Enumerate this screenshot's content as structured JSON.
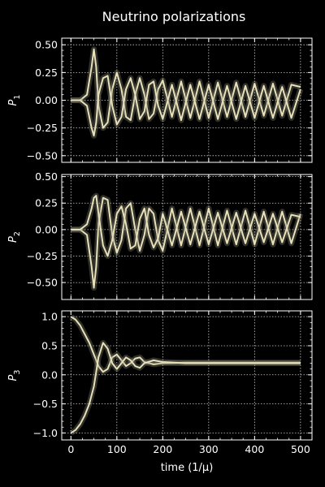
{
  "chart_data": {
    "title": "Neutrino polarizations",
    "type": "line",
    "xlabel": "time (1/μ)",
    "xlim": [
      -20,
      525
    ],
    "xticks": [
      0,
      100,
      200,
      300,
      400,
      500
    ],
    "grid": true,
    "background": "#000000",
    "line_color": "#e8e0b8",
    "ensemble_color": "#8a8a78",
    "panels": [
      {
        "ylabel": "P1",
        "ylim": [
          -0.56,
          0.56
        ],
        "yticks": [
          -0.5,
          -0.25,
          0.0,
          0.25,
          0.5
        ],
        "ytick_labels": [
          "−0.50",
          "−0.25",
          "0.00",
          "0.25",
          "0.50"
        ],
        "series": [
          {
            "x": [
              0,
              20,
              35,
              45,
              50,
              55,
              60,
              70,
              80,
              90,
              100,
              110,
              120,
              130,
              140,
              150,
              160,
              170,
              180,
              190,
              200,
              220,
              240,
              260,
              280,
              300,
              320,
              340,
              360,
              380,
              400,
              420,
              440,
              460,
              480,
              500
            ],
            "y": [
              0,
              0,
              0.05,
              0.3,
              0.46,
              0.3,
              -0.05,
              -0.25,
              -0.2,
              0.1,
              0.25,
              0.1,
              -0.15,
              -0.18,
              0.05,
              0.2,
              0.05,
              -0.17,
              -0.12,
              0.1,
              0.18,
              -0.15,
              0.17,
              -0.16,
              0.17,
              -0.16,
              0.16,
              -0.15,
              0.16,
              -0.15,
              0.15,
              -0.14,
              0.15,
              -0.14,
              0.14,
              0.12
            ]
          },
          {
            "x": [
              0,
              20,
              35,
              45,
              50,
              55,
              60,
              70,
              80,
              90,
              100,
              110,
              120,
              130,
              140,
              150,
              160,
              170,
              180,
              190,
              200,
              220,
              240,
              260,
              280,
              300,
              320,
              340,
              360,
              380,
              400,
              420,
              440,
              460,
              480,
              500
            ],
            "y": [
              0,
              0,
              -0.05,
              -0.25,
              -0.32,
              -0.2,
              0.05,
              0.2,
              0.22,
              -0.05,
              -0.22,
              -0.15,
              0.1,
              0.2,
              0.05,
              -0.17,
              -0.1,
              0.14,
              0.17,
              -0.05,
              -0.17,
              0.14,
              -0.18,
              0.14,
              -0.17,
              0.14,
              -0.17,
              0.13,
              -0.17,
              0.13,
              -0.16,
              0.13,
              -0.16,
              0.12,
              -0.16,
              0.1
            ]
          }
        ]
      },
      {
        "ylabel": "P2",
        "ylim": [
          -0.66,
          0.52
        ],
        "yticks": [
          -0.5,
          -0.25,
          0.0,
          0.25,
          0.5
        ],
        "ytick_labels": [
          "−0.50",
          "−0.25",
          "0.00",
          "0.25",
          "0.50"
        ],
        "series": [
          {
            "x": [
              0,
              20,
              35,
              45,
              50,
              55,
              60,
              70,
              80,
              90,
              100,
              110,
              120,
              130,
              140,
              150,
              160,
              170,
              180,
              190,
              200,
              220,
              240,
              260,
              280,
              300,
              320,
              340,
              360,
              380,
              400,
              420,
              440,
              460,
              480,
              500
            ],
            "y": [
              0,
              0,
              -0.05,
              -0.35,
              -0.55,
              -0.35,
              0.05,
              0.3,
              0.28,
              -0.05,
              -0.22,
              -0.1,
              0.2,
              0.25,
              0.0,
              -0.2,
              -0.05,
              0.2,
              0.15,
              -0.1,
              -0.2,
              0.2,
              -0.15,
              0.2,
              -0.15,
              0.2,
              -0.15,
              0.18,
              -0.14,
              0.18,
              -0.14,
              0.17,
              -0.14,
              0.17,
              -0.13,
              0.15
            ]
          },
          {
            "x": [
              0,
              20,
              35,
              45,
              50,
              55,
              60,
              70,
              80,
              90,
              100,
              110,
              120,
              130,
              140,
              150,
              160,
              170,
              180,
              190,
              200,
              220,
              240,
              260,
              280,
              300,
              320,
              340,
              360,
              380,
              400,
              420,
              440,
              460,
              480,
              500
            ],
            "y": [
              0,
              0,
              0.05,
              0.2,
              0.3,
              0.32,
              0.15,
              -0.15,
              -0.25,
              -0.1,
              0.15,
              0.22,
              0.05,
              -0.18,
              -0.15,
              0.1,
              0.2,
              -0.05,
              -0.17,
              -0.08,
              0.15,
              -0.15,
              0.17,
              -0.14,
              0.17,
              -0.14,
              0.16,
              -0.13,
              0.16,
              -0.13,
              0.15,
              -0.12,
              0.15,
              -0.12,
              0.14,
              0.12
            ]
          }
        ]
      },
      {
        "ylabel": "P3",
        "ylim": [
          -1.12,
          1.1
        ],
        "yticks": [
          -1.0,
          -0.5,
          0.0,
          0.5,
          1.0
        ],
        "ytick_labels": [
          "−1.0",
          "−0.5",
          "0.0",
          "0.5",
          "1.0"
        ],
        "series": [
          {
            "x": [
              0,
              10,
              20,
              30,
              40,
              50,
              60,
              70,
              80,
              90,
              100,
              110,
              120,
              130,
              140,
              150,
              160,
              180,
              200,
              250,
              300,
              350,
              400,
              450,
              500
            ],
            "y": [
              1.0,
              0.95,
              0.85,
              0.7,
              0.55,
              0.35,
              0.15,
              0.05,
              0.1,
              0.3,
              0.35,
              0.25,
              0.15,
              0.2,
              0.28,
              0.3,
              0.22,
              0.18,
              0.2,
              0.21,
              0.21,
              0.21,
              0.21,
              0.21,
              0.21
            ]
          },
          {
            "x": [
              0,
              10,
              20,
              30,
              40,
              50,
              60,
              70,
              80,
              90,
              100,
              110,
              120,
              130,
              140,
              150,
              160,
              180,
              200,
              250,
              300,
              350,
              400,
              450,
              500
            ],
            "y": [
              -1.0,
              -0.95,
              -0.85,
              -0.7,
              -0.5,
              -0.2,
              0.3,
              0.55,
              0.45,
              0.2,
              0.1,
              0.2,
              0.3,
              0.25,
              0.15,
              0.12,
              0.2,
              0.25,
              0.22,
              0.2,
              0.2,
              0.2,
              0.2,
              0.2,
              0.2
            ]
          }
        ]
      }
    ]
  }
}
